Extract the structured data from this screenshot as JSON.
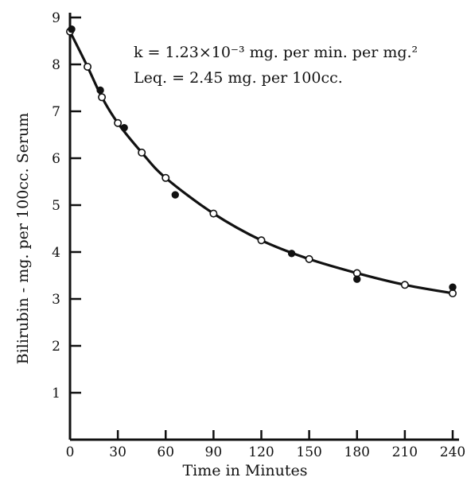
{
  "chart_data": {
    "type": "scatter",
    "xlabel": "Time in Minutes",
    "ylabel": "Bilirubin - mg. per 100cc. Serum",
    "xlim": [
      0,
      240
    ],
    "ylim": [
      0,
      9
    ],
    "x_ticks": [
      0,
      30,
      60,
      90,
      120,
      150,
      180,
      210,
      240
    ],
    "y_ticks": [
      1,
      2,
      3,
      4,
      5,
      6,
      7,
      8,
      9
    ],
    "grid": false,
    "annotation_k": "k = 1.23×10⁻³ mg. per min. per mg.²",
    "annotation_leq": "Leq. = 2.45 mg. per 100cc.",
    "series": [
      {
        "marker": "open-circle",
        "x": [
          0,
          11,
          20,
          30,
          45,
          60,
          90,
          120,
          150,
          180,
          210,
          240
        ],
        "y": [
          8.7,
          7.95,
          7.3,
          6.75,
          6.12,
          5.58,
          4.82,
          4.25,
          3.85,
          3.55,
          3.3,
          3.12
        ]
      },
      {
        "marker": "filled-dot",
        "x": [
          1,
          19,
          34,
          66,
          139,
          180,
          240
        ],
        "y": [
          8.75,
          7.45,
          6.65,
          5.22,
          3.97,
          3.42,
          3.25
        ]
      }
    ],
    "fitted_curve": {
      "style": "solid",
      "model": "exponential decay to Leq"
    }
  }
}
